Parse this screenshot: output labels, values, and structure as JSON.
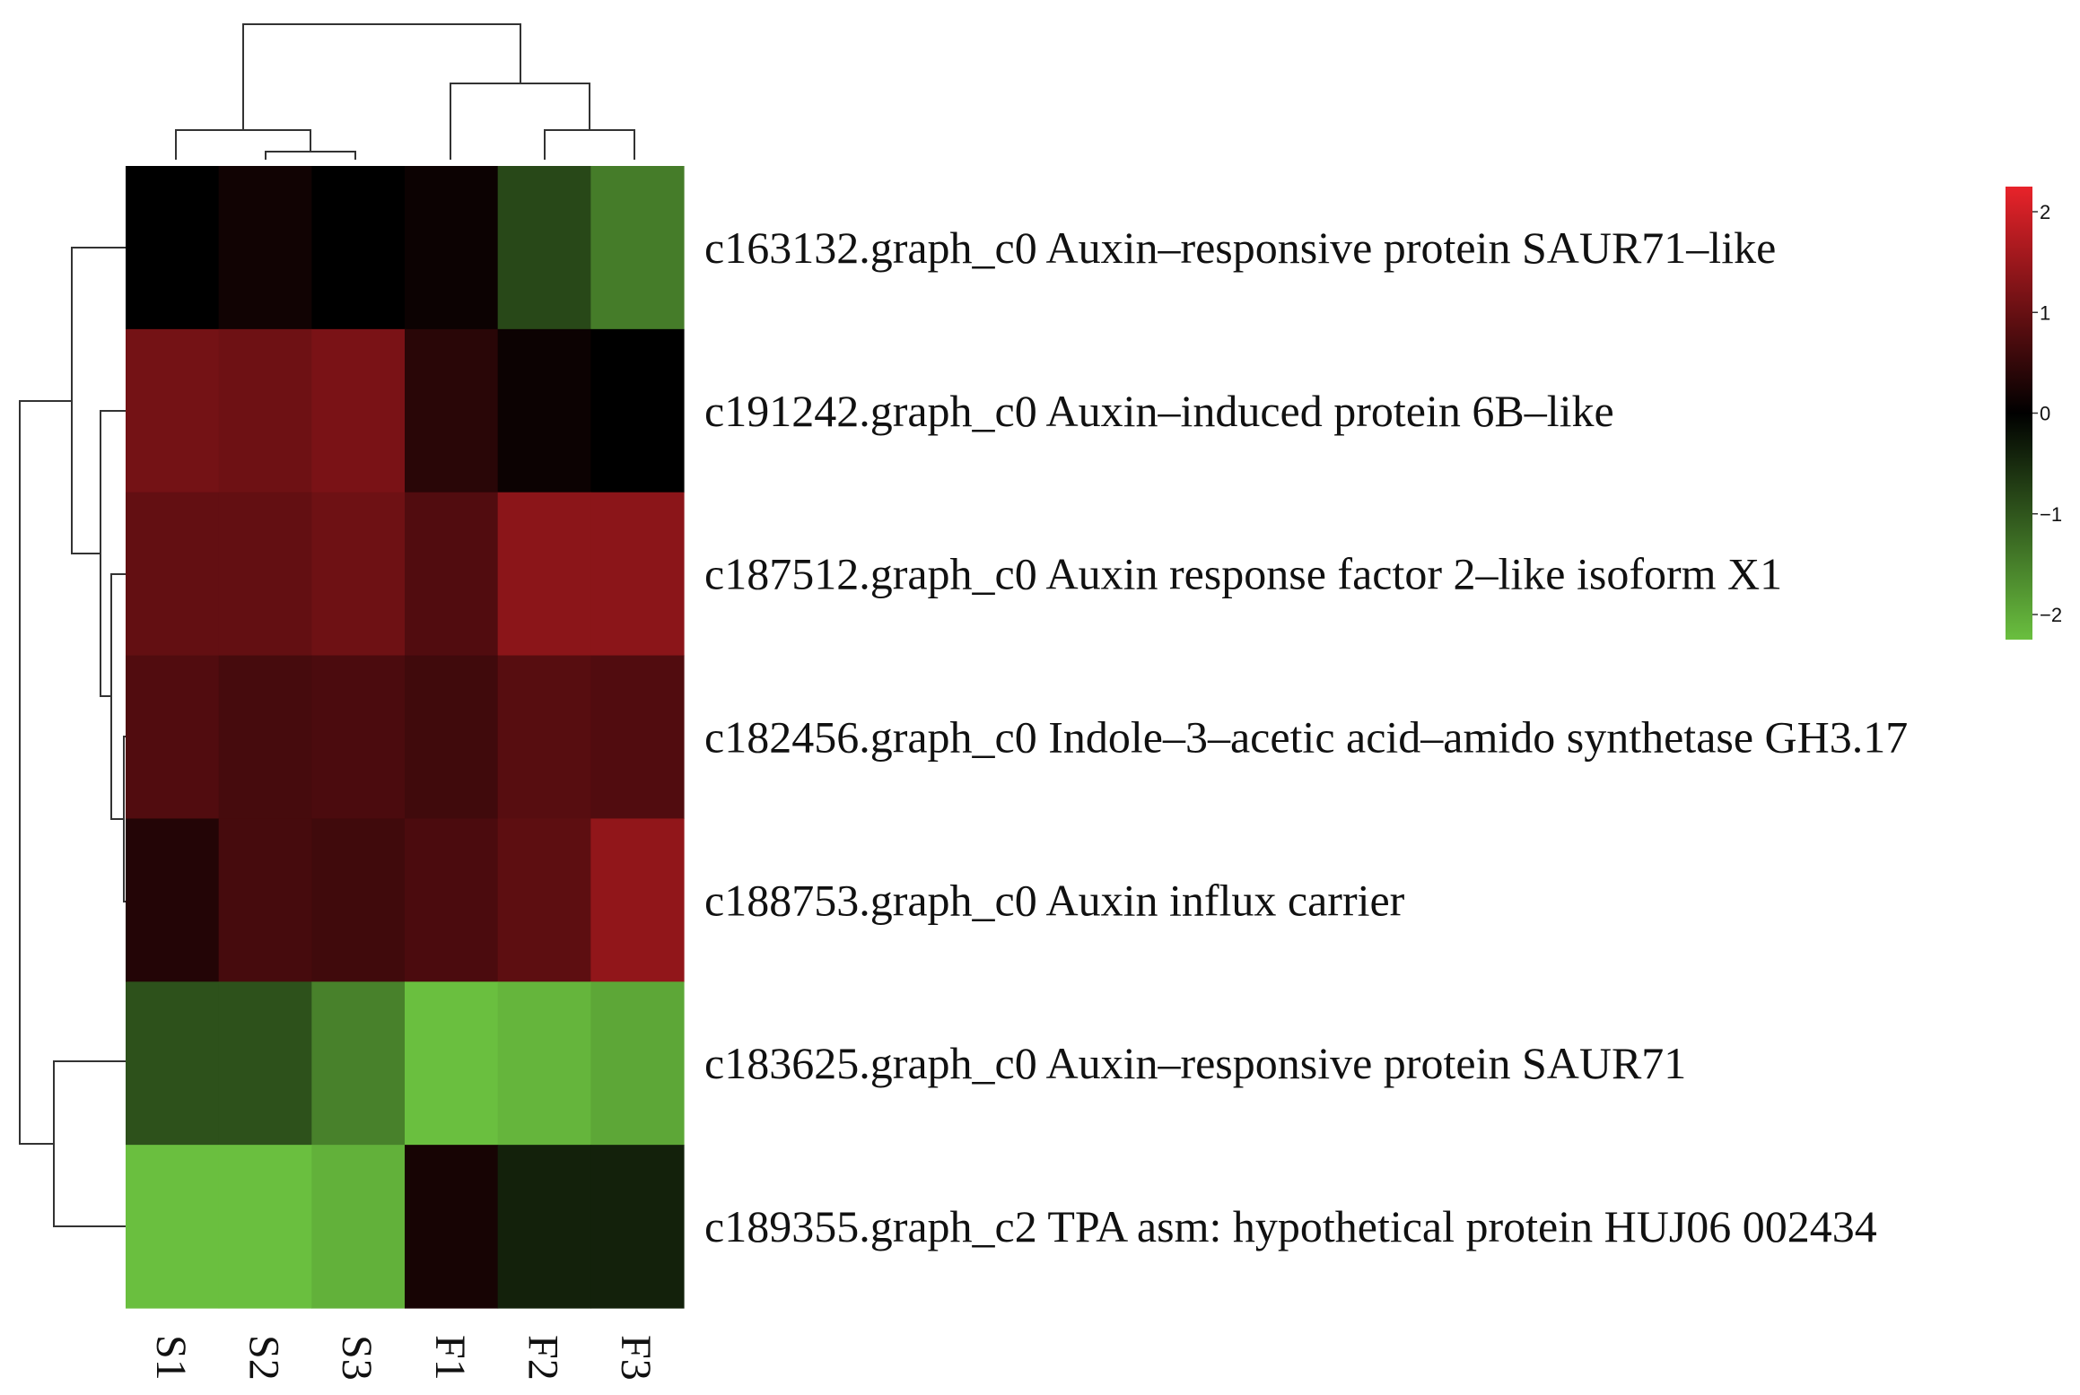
{
  "chart_data": {
    "type": "heatmap",
    "title": "",
    "xlabel": "",
    "ylabel": "",
    "columns": [
      "S1",
      "S2",
      "S3",
      "F1",
      "F2",
      "F3"
    ],
    "rows": [
      "c163132.graph_c0 Auxin-responsive protein SAUR71-like",
      "c191242.graph_c0 Auxin-induced protein 6B-like",
      "c187512.graph_c0 Auxin response factor 2-like isoform X1",
      "c182456.graph_c0 Indole-3-acetic acid-amido synthetase GH3.17",
      "c188753.graph_c0 Auxin influx carrier",
      "c183625.graph_c0 Auxin-responsive protein SAUR71",
      "c189355.graph_c2 TPA asm: hypothetical protein HUJ06 002434"
    ],
    "values": [
      [
        0.0,
        0.15,
        0.0,
        0.1,
        -0.75,
        -1.3
      ],
      [
        1.0,
        0.95,
        1.05,
        0.35,
        0.1,
        0.0
      ],
      [
        0.85,
        0.85,
        0.95,
        0.7,
        1.2,
        1.2
      ],
      [
        0.7,
        0.6,
        0.65,
        0.55,
        0.75,
        0.7
      ],
      [
        0.3,
        0.6,
        0.55,
        0.65,
        0.8,
        1.25
      ],
      [
        -0.85,
        -0.85,
        -1.35,
        -2.0,
        -1.9,
        -1.75
      ],
      [
        -2.0,
        -2.0,
        -1.85,
        0.2,
        -0.35,
        -0.35
      ]
    ],
    "color_scale": {
      "min": -2,
      "max": 2,
      "low_color": "#6abf3f",
      "mid_color": "#000000",
      "high_color": "#e8232a",
      "ticks": [
        "2",
        "1",
        "0",
        "−1",
        "−2"
      ]
    },
    "legend": "right",
    "row_dendrogram": true,
    "column_dendrogram": true
  }
}
